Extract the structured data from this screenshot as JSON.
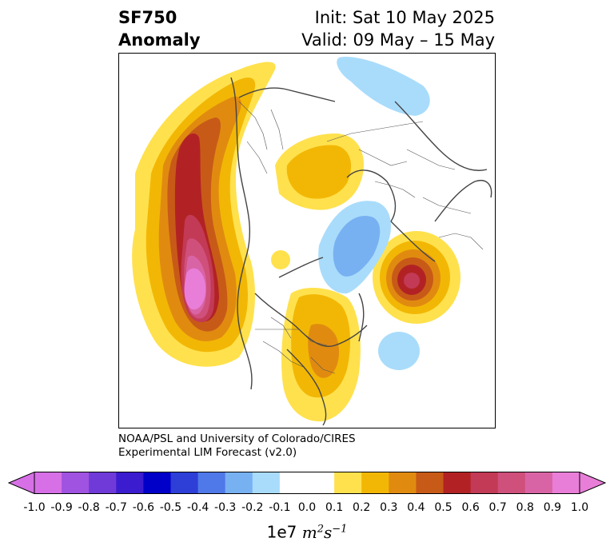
{
  "title": {
    "left_line1": "SF750",
    "left_line2": "Anomaly",
    "right_line1": "Init: Sat 10 May 2025",
    "right_line2": "Valid: 09 May – 15 May"
  },
  "credit": {
    "line1": "NOAA/PSL and University of Colorado/CIRES",
    "line2": "Experimental LIM Forecast (v2.0)"
  },
  "colorbar": {
    "ticks": [
      "-1.0",
      "-0.9",
      "-0.8",
      "-0.7",
      "-0.6",
      "-0.5",
      "-0.4",
      "-0.3",
      "-0.2",
      "-0.1",
      "0.0",
      "0.1",
      "0.2",
      "0.3",
      "0.4",
      "0.5",
      "0.6",
      "0.7",
      "0.8",
      "0.9",
      "1.0"
    ],
    "colors": [
      "#d770e6",
      "#a052e0",
      "#6f3ad8",
      "#3c1ccf",
      "#0000c8",
      "#2d3fd6",
      "#4f79e8",
      "#78b1f2",
      "#a9dcfb",
      "#ffffff",
      "#ffffff",
      "#ffe14d",
      "#f2b705",
      "#e08b10",
      "#c85a18",
      "#b22224",
      "#c23a55",
      "#cf507b",
      "#d964a5",
      "#e97ed8"
    ],
    "label_base": "1e7",
    "label_unit_m": "m",
    "label_unit_m_exp": "2",
    "label_unit_s": "s",
    "label_unit_s_exp": "−1"
  },
  "map": {
    "projection": "north-polar-stereographic",
    "field": "streamfunction anomaly at 750 hPa",
    "contour_colors": {
      "yellow": "#ffe14d",
      "gold": "#f2b705",
      "orange": "#e08b10",
      "dark_orange": "#c85a18",
      "red": "#b22224",
      "crimson": "#c23a55",
      "rose": "#cf507b",
      "pink": "#d964a5",
      "light_magenta": "#e97ed8",
      "light_blue": "#a9dcfb",
      "mid_blue": "#78b1f2"
    },
    "features": [
      {
        "name": "pacific-positive-anomaly",
        "peak": 1.0,
        "sign": "positive"
      },
      {
        "name": "north-america-positive-anomaly",
        "peak": 0.4,
        "sign": "positive"
      },
      {
        "name": "arctic-positive-anomaly",
        "peak": 0.2,
        "sign": "positive"
      },
      {
        "name": "north-atlantic-positive-anomaly",
        "peak": 0.6,
        "sign": "positive"
      },
      {
        "name": "europe-negative-anomaly",
        "peak": -0.3,
        "sign": "negative"
      },
      {
        "name": "west-africa-negative-anomaly",
        "peak": -0.2,
        "sign": "negative"
      },
      {
        "name": "central-asia-negative-anomaly",
        "peak": -0.2,
        "sign": "negative"
      }
    ]
  }
}
